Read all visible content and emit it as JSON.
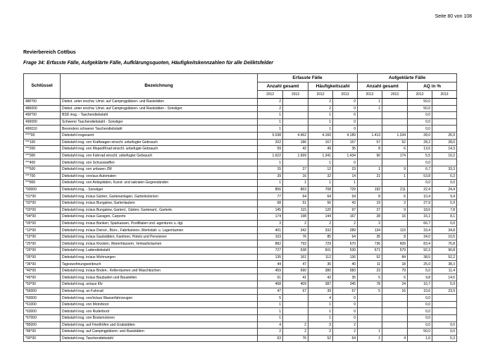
{
  "page_number": "Seite 80 von 108",
  "region": "Revierbereich Cottbus",
  "question": "Frage 34: Erfasste Fälle, Aufgeklärte Fälle, Aufklärungsquoten, Häufigkeitskennzahlen für alle Deliktsfelder",
  "table": {
    "headers": {
      "key": "Schlüssel",
      "name": "Bezeichnung",
      "group1": "Erfasste Fälle",
      "group2": "Aufgeklärte Fälle",
      "sub": [
        "Anzahl gesamt",
        "Häufigkeitszahl",
        "Anzahl gesamt",
        "AQ in %"
      ],
      "years": [
        "2012",
        "2013",
        "2012",
        "2013",
        "2012",
        "2013",
        "2012",
        "2013"
      ]
    },
    "rows": [
      [
        "486*00",
        "Diebst. unter erschw. Umst. auf Campingplätzen- und Raststätten",
        "2",
        "",
        "2",
        "0",
        "1",
        "",
        "50,0",
        ""
      ],
      [
        "486000",
        "Diebst. unter erschw. Umst. auf Campingplätzen- und Raststätten - Sonstiger",
        "2",
        "",
        "2",
        "0",
        "1",
        "",
        "50,0",
        ""
      ],
      [
        "490*00",
        "BSD insg. - Taschendiebstahl",
        "1",
        "",
        "1",
        "0",
        "",
        "",
        "0,0",
        ""
      ],
      [
        "490000",
        "Schwerer Taschendiebstahl - Sonstiger",
        "1",
        "",
        "1",
        "0",
        "",
        "",
        "0,0",
        ""
      ],
      [
        "490010",
        "Besonders schwerer Taschendiebstahl",
        "1",
        "",
        "1",
        "0",
        "",
        "",
        "0,0",
        ""
      ],
      [
        "****00",
        "Diebstahl insgesamt",
        "5.038",
        "4.962",
        "4.166",
        "4.189",
        "1.413",
        "1.334",
        "28,0",
        "26,9"
      ],
      [
        "***100",
        "Diebstahl insg. von Kraftwagen einschl. unbefugter Gebrauch",
        "202",
        "186",
        "167",
        "157",
        "57",
        "52",
        "28,2",
        "28,0"
      ],
      [
        "***200",
        "Diebstahl insg. von Moped/Krad einschl. unbefugte Gebrauch",
        "59",
        "42",
        "49",
        "35",
        "8",
        "6",
        "13,6",
        "14,3"
      ],
      [
        "***300",
        "Diebstahl insg. von Fahrrad einschl. unbefugter Gebrauch",
        "1.622",
        "1.699",
        "1.341",
        "1.434",
        "90",
        "174",
        "5,5",
        "10,2"
      ],
      [
        "***400",
        "Diebstahl insg. von Schusswaffen",
        "1",
        "",
        "1",
        "0",
        "",
        "",
        "0,0",
        ""
      ],
      [
        "***500",
        "Diebstahl insg. von unbaren ZM",
        "15",
        "27",
        "12",
        "23",
        "1",
        "9",
        "6,7",
        "33,3"
      ],
      [
        "***700",
        "Diebstahl insg. von/aus Automaten",
        "39",
        "16",
        "32",
        "14",
        "21",
        "1",
        "53,8",
        "6,3"
      ],
      [
        "***800",
        "Diebstahl insg. von Antiquitäten, Kunst- und sakralen Gegenständen",
        "1",
        "1",
        "1",
        "1",
        "",
        "",
        "0,0",
        "0,0"
      ],
      [
        "*00000",
        "Diebstahl insg. - Sonstiger",
        "856",
        "863",
        "708",
        "729",
        "192",
        "211",
        "22,4",
        "24,4"
      ],
      [
        "*01*00",
        "Diebstahl insg. in/aus Gärten, Gartenanlagen, Gartenkolonien",
        "77",
        "64",
        "64",
        "54",
        "8",
        "6",
        "10,4",
        "9,4"
      ],
      [
        "*02*00",
        "Diebstahl insg. in/aus Bungalow, Gartenlauben",
        "68",
        "51",
        "56",
        "43",
        "19",
        "3",
        "27,9",
        "5,9"
      ],
      [
        "*03*00",
        "Diebstahl insg. in/aus Bungalow, Gartenl., Gärten, Gartenanl., Gartenk.",
        "145",
        "115",
        "120",
        "97",
        "27",
        "9",
        "18,6",
        "7,8"
      ],
      [
        "*04*00",
        "Diebstahl insg. in/aus Garagen, Carports",
        "174",
        "198",
        "144",
        "167",
        "28",
        "16",
        "16,1",
        "8,1"
      ],
      [
        "*05*00",
        "Diebstahl insg. in/aus Banken, Sparkassen, Postfilialen und -agenturen u. dgl.",
        "3",
        "2",
        "2",
        "2",
        "2",
        "",
        "66,7",
        "0,0"
      ],
      [
        "*10*00",
        "Diebstahl insg. in/aus Dienst-, Büro-, Fabrikations-,Werkstatt- u. Lagerräumen",
        "401",
        "342",
        "332",
        "289",
        "134",
        "119",
        "33,4",
        "34,8"
      ],
      [
        "*15*00",
        "Diebstahl insg. in/aus Gaststätten, Kantinen, Hotels und Pensionen",
        "103",
        "76",
        "85",
        "64",
        "35",
        "8",
        "34,0",
        "10,5"
      ],
      [
        "*25*00",
        "Diebstahl insg. in/aus Kiosken, Warenhäusern, Verkaufsräumen",
        "882",
        "793",
        "729",
        "670",
        "736",
        "609",
        "83,4",
        "76,8"
      ],
      [
        "*26*00",
        "Diebstahl insg. Ladendiebstahl",
        "727",
        "638",
        "601",
        "539",
        "671",
        "579",
        "92,3",
        "90,8"
      ],
      [
        "*35*00",
        "Diebstahl insg. in/aus Wohnungen",
        "135",
        "161",
        "112",
        "136",
        "52",
        "84",
        "38,5",
        "52,2"
      ],
      [
        "*36*00",
        "Tageswohnungseinbruch",
        "44",
        "47",
        "36",
        "40",
        "11",
        "18",
        "25,0",
        "38,3"
      ],
      [
        "*40*00",
        "Diebstahl insg. in/aus Boden-, Kellerräumen und Waschküchen",
        "459",
        "690",
        "380",
        "583",
        "23",
        "79",
        "5,0",
        "11,4"
      ],
      [
        "*45*00",
        "Diebstahl insg. in/aus Baubuden und Baustellen",
        "51",
        "41",
        "42",
        "35",
        "5",
        "6",
        "9,8",
        "14,6"
      ],
      [
        "*50*00",
        "Diebstahl insg. an/aus Kfz",
        "468",
        "409",
        "387",
        "345",
        "78",
        "24",
        "16,7",
        "5,9"
      ],
      [
        "*56000",
        "Diebstahl insg. an Fahrrad",
        "47",
        "67",
        "39",
        "57",
        "5",
        "16",
        "10,6",
        "23,9"
      ],
      [
        "*60000",
        "Diebstahl insg. von/in/aus Wasserfahrzeugen",
        "5",
        "",
        "4",
        "0",
        "",
        "",
        "0,0",
        ""
      ],
      [
        "*61000",
        "Diebstahl insg. von Motorboot",
        "1",
        "",
        "1",
        "0",
        "",
        "",
        "0,0",
        ""
      ],
      [
        "*63000",
        "Diebstahl insg. von Ruderboot",
        "1",
        "",
        "1",
        "0",
        "",
        "",
        "0,0",
        ""
      ],
      [
        "*67000",
        "Diebstahl insg. von Bootsmotoren",
        "1",
        "",
        "1",
        "0",
        "",
        "",
        "0,0",
        ""
      ],
      [
        "*85000",
        "Diebstahl insg. auf Friedhöfen und Grabstätten",
        "4",
        "2",
        "3",
        "2",
        "",
        "",
        "0,0",
        "0,0"
      ],
      [
        "*86*00",
        "Diebstahl insg. auf Campingplätzen- und Raststätten",
        "2",
        "2",
        "2",
        "2",
        "1",
        "",
        "50,0",
        "0,0"
      ],
      [
        "*90*00",
        "Diebstahl insg. Taschendiebstahl",
        "63",
        "76",
        "52",
        "64",
        "1",
        "4",
        "1,6",
        "5,3"
      ]
    ]
  }
}
